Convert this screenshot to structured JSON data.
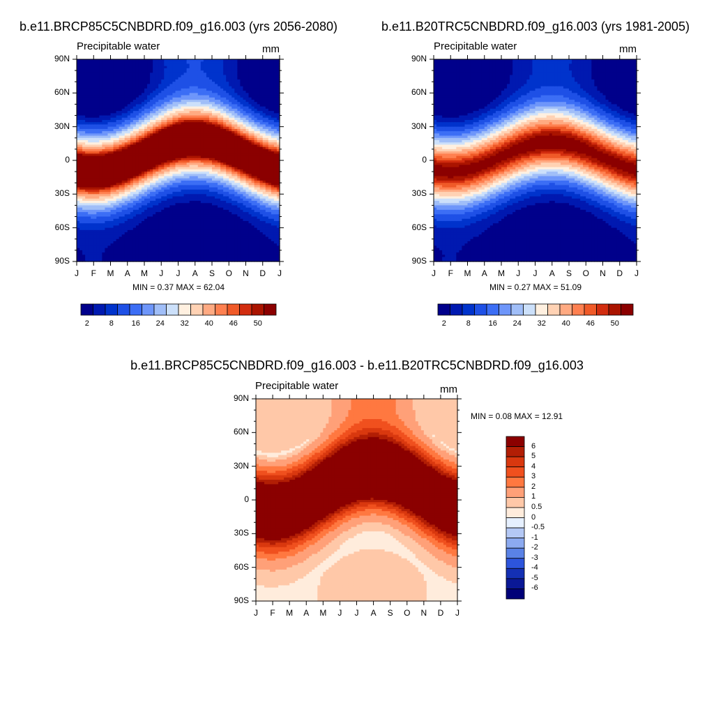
{
  "chart_data": [
    {
      "type": "heatmap",
      "title": "b.e11.BRCP85C5CNBDRD.f09_g16.003 (yrs 2056-2080)",
      "subtitle_left": "Precipitable water",
      "subtitle_right": "mm",
      "x_ticks": [
        "J",
        "F",
        "M",
        "A",
        "M",
        "J",
        "J",
        "A",
        "S",
        "O",
        "N",
        "D",
        "J"
      ],
      "y_ticks": [
        "90N",
        "60N",
        "30N",
        "0",
        "30S",
        "60S",
        "90S"
      ],
      "ylim": [
        -90,
        90
      ],
      "min_label": "MIN =",
      "min": "0.37",
      "max_label": "MAX =",
      "max": "62.04",
      "colorbar_labels": [
        "2",
        "8",
        "16",
        "24",
        "32",
        "40",
        "46",
        "50"
      ],
      "zonal_mean_profile": {
        "lat": [
          90,
          60,
          30,
          10,
          0,
          -20,
          -40,
          -60,
          -90
        ],
        "values_month_jan": [
          2,
          6,
          20,
          50,
          56,
          46,
          24,
          8,
          1
        ],
        "values_month_aug": [
          14,
          22,
          34,
          58,
          52,
          30,
          14,
          6,
          1
        ]
      }
    },
    {
      "type": "heatmap",
      "title": "b.e11.B20TRC5CNBDRD.f09_g16.003 (yrs 1981-2005)",
      "subtitle_left": "Precipitable water",
      "subtitle_right": "mm",
      "x_ticks": [
        "J",
        "F",
        "M",
        "A",
        "M",
        "J",
        "J",
        "A",
        "S",
        "O",
        "N",
        "D",
        "J"
      ],
      "y_ticks": [
        "90N",
        "60N",
        "30N",
        "0",
        "30S",
        "60S",
        "90S"
      ],
      "ylim": [
        -90,
        90
      ],
      "min_label": "MIN =",
      "min": "0.27",
      "max_label": "MAX =",
      "max": "51.09",
      "colorbar_labels": [
        "2",
        "8",
        "16",
        "24",
        "32",
        "40",
        "46",
        "50"
      ]
    },
    {
      "type": "heatmap",
      "title": "b.e11.BRCP85C5CNBDRD.f09_g16.003 - b.e11.B20TRC5CNBDRD.f09_g16.003",
      "subtitle_left": "Precipitable water",
      "subtitle_right": "mm",
      "x_ticks": [
        "J",
        "F",
        "M",
        "A",
        "M",
        "J",
        "J",
        "A",
        "S",
        "O",
        "N",
        "D",
        "J"
      ],
      "y_ticks": [
        "90N",
        "60N",
        "30N",
        "0",
        "30S",
        "60S",
        "90S"
      ],
      "ylim": [
        -90,
        90
      ],
      "min_label": "MIN =",
      "min": "0.08",
      "max_label": "MAX =",
      "max": "12.91",
      "colorbar_labels": [
        "6",
        "5",
        "4",
        "3",
        "2",
        "1",
        "0.5",
        "0",
        "-0.5",
        "-1",
        "-2",
        "-3",
        "-4",
        "-5",
        "-6"
      ]
    }
  ],
  "colors": {
    "scale": [
      "#00008b",
      "#0019b0",
      "#0033cc",
      "#1e50e6",
      "#3c6ef5",
      "#6e96fa",
      "#a0bef8",
      "#cce0fa",
      "#fff0e0",
      "#ffd2b4",
      "#ffaa82",
      "#ff8050",
      "#f05a28",
      "#d22d0f",
      "#aa1400",
      "#8b0000"
    ],
    "diff_scale": [
      "#8b0000",
      "#b21e05",
      "#d9380f",
      "#f0501e",
      "#ff7840",
      "#ffa078",
      "#ffc8a8",
      "#ffecdc",
      "#e6f0ff",
      "#b4c8f5",
      "#8caaf0",
      "#5a82e6",
      "#2d55dc",
      "#1430b4",
      "#0a1896",
      "#000078"
    ]
  }
}
